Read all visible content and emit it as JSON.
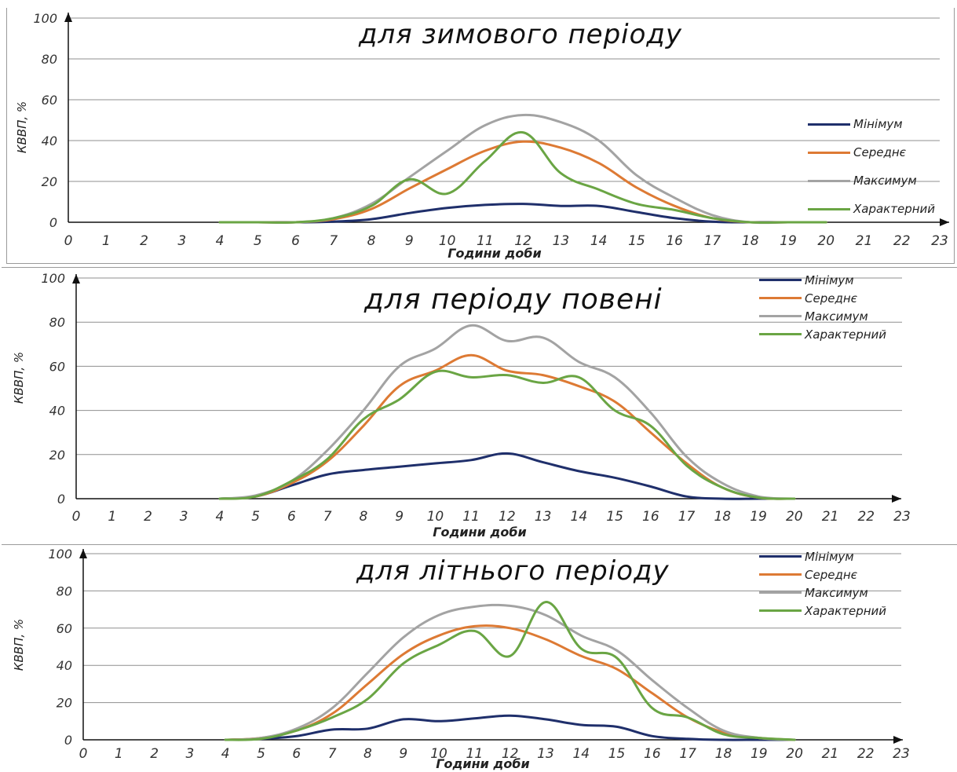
{
  "hours": [
    "0",
    "1",
    "2",
    "3",
    "4",
    "5",
    "6",
    "7",
    "8",
    "9",
    "10",
    "11",
    "12",
    "13",
    "14",
    "15",
    "16",
    "17",
    "18",
    "19",
    "20",
    "21",
    "22",
    "23"
  ],
  "y_ticks": [
    "0",
    "20",
    "40",
    "60",
    "80",
    "100"
  ],
  "colors": {
    "Мінімум": "#1f2f6b",
    "Середнє": "#dd7a34",
    "Максимум": "#a3a3a3",
    "Характерний": "#6aa544"
  },
  "charts": [
    {
      "title": "для зимового періоду",
      "xlabel": "Години доби",
      "ylabel": "КВВП, %"
    },
    {
      "title": "для   періоду повені",
      "xlabel": "Години доби",
      "ylabel": "КВВП, %"
    },
    {
      "title": "для літнього періоду",
      "xlabel": "Години доби",
      "ylabel": "КВВП, %"
    }
  ],
  "legend": [
    "Мінімум",
    "Середнє",
    "Максимум",
    "Характерний"
  ],
  "chart_data": [
    {
      "type": "line",
      "title": "для зимового періоду",
      "xlabel": "Години доби",
      "ylabel": "КВВП, %",
      "xlim": [
        0,
        23
      ],
      "ylim": [
        0,
        100
      ],
      "grid": true,
      "legend_position": "right",
      "x": [
        4,
        5,
        6,
        7,
        8,
        9,
        10,
        11,
        12,
        13,
        14,
        15,
        16,
        17,
        18,
        19,
        20
      ],
      "series": [
        {
          "name": "Мінімум",
          "values": [
            0,
            0,
            0,
            0.3,
            1.5,
            4.5,
            7,
            8.5,
            9,
            8,
            8,
            5,
            2,
            0.3,
            0,
            0,
            0
          ]
        },
        {
          "name": "Середнє",
          "values": [
            0,
            0,
            0,
            1.5,
            6.5,
            16.5,
            26,
            35,
            39.5,
            36.5,
            29,
            17,
            8,
            2,
            0,
            0,
            0
          ]
        },
        {
          "name": "Максимум",
          "values": [
            0,
            0,
            0,
            2,
            9,
            22,
            35,
            47.5,
            52.5,
            49,
            40,
            23,
            12,
            3.5,
            0,
            0,
            0
          ]
        },
        {
          "name": "Характерний",
          "values": [
            0,
            0,
            0,
            2,
            8,
            21,
            14,
            30,
            44,
            24,
            16,
            9,
            6,
            2,
            0,
            0,
            0
          ]
        }
      ]
    },
    {
      "type": "line",
      "title": "для   періоду повені",
      "xlabel": "Години доби",
      "ylabel": "КВВП, %",
      "xlim": [
        0,
        23
      ],
      "ylim": [
        0,
        100
      ],
      "grid": true,
      "legend_position": "top-right",
      "x": [
        4,
        5,
        6,
        7,
        8,
        9,
        10,
        11,
        12,
        13,
        14,
        15,
        16,
        17,
        18,
        19,
        20
      ],
      "series": [
        {
          "name": "Мінімум",
          "values": [
            0,
            1,
            6,
            11,
            13,
            14.5,
            16,
            17.5,
            20.5,
            16.5,
            12.5,
            9.5,
            5.5,
            1,
            0,
            0,
            0
          ]
        },
        {
          "name": "Середнє",
          "values": [
            0,
            1,
            7,
            17,
            33,
            51,
            58,
            65,
            58,
            56,
            51,
            44,
            30,
            16,
            5,
            0.5,
            0
          ]
        },
        {
          "name": "Максимум",
          "values": [
            0,
            1.5,
            8,
            22,
            40,
            60,
            68,
            78.5,
            71.5,
            73,
            62,
            55,
            39,
            19,
            7,
            1,
            0
          ]
        },
        {
          "name": "Характерний",
          "values": [
            0,
            1,
            8,
            18,
            36,
            45,
            57.5,
            55,
            56,
            52.5,
            55,
            40,
            33,
            15,
            5,
            0.5,
            0
          ]
        }
      ]
    },
    {
      "type": "line",
      "title": "для літнього періоду",
      "xlabel": "Години доби",
      "ylabel": "КВВП, %",
      "xlim": [
        0,
        23
      ],
      "ylim": [
        0,
        100
      ],
      "grid": true,
      "legend_position": "top-right",
      "x": [
        4,
        5,
        6,
        7,
        8,
        9,
        10,
        11,
        12,
        13,
        14,
        15,
        16,
        17,
        18,
        19,
        20
      ],
      "series": [
        {
          "name": "Мінімум",
          "values": [
            0,
            0.5,
            2,
            5.5,
            6,
            11,
            10,
            11.5,
            13,
            11,
            8,
            7,
            2,
            0.5,
            0,
            0,
            0
          ]
        },
        {
          "name": "Середнє",
          "values": [
            0,
            1,
            5,
            14,
            30,
            46,
            56,
            61,
            60,
            54,
            45,
            38,
            25,
            12,
            4,
            1,
            0
          ]
        },
        {
          "name": "Максимум",
          "values": [
            0,
            1,
            6,
            17,
            36,
            55,
            67,
            71.5,
            72,
            67,
            56,
            48,
            32,
            17,
            5,
            1,
            0
          ]
        },
        {
          "name": "Характерний",
          "values": [
            0,
            0.5,
            5,
            12,
            22,
            41,
            51,
            58.5,
            45,
            74,
            49,
            44,
            17,
            12,
            3,
            1,
            0
          ]
        }
      ]
    }
  ]
}
